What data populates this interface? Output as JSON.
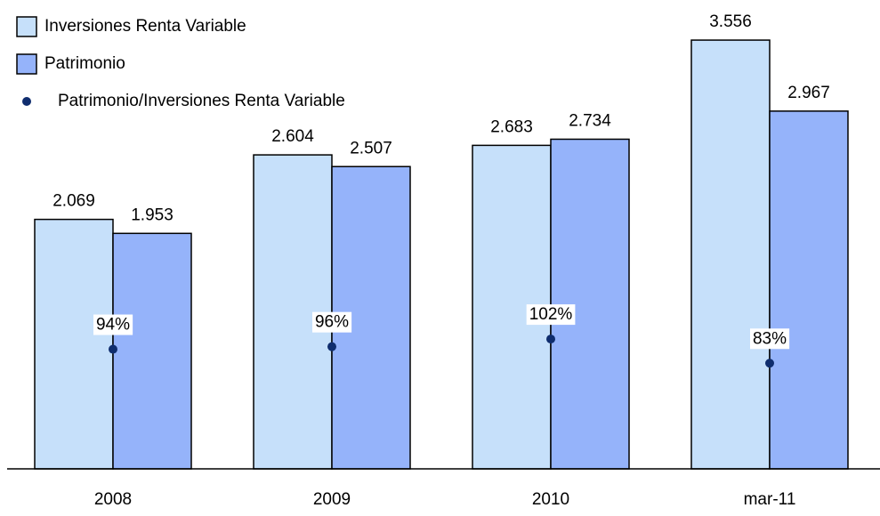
{
  "chart_data": {
    "type": "bar",
    "categories": [
      "2008",
      "2009",
      "2010",
      "mar-11"
    ],
    "series": [
      {
        "name": "Inversiones Renta Variable",
        "color": "#c6e0fa",
        "values": [
          2.069,
          2.604,
          2.683,
          3.556
        ]
      },
      {
        "name": "Patrimonio",
        "color": "#95b3fa",
        "values": [
          1.953,
          2.507,
          2.734,
          2.967
        ]
      },
      {
        "name": "Patrimonio/Inversiones Renta Variable",
        "color": "#0f2d6e",
        "type": "scatter",
        "axis": "y2",
        "values": [
          94,
          96,
          102,
          83
        ],
        "value_labels": [
          "94%",
          "96%",
          "102%",
          "83%"
        ]
      }
    ],
    "ylim": [
      0,
      3.8
    ],
    "y2lim": [
      0,
      360
    ],
    "legend": "top-left"
  }
}
